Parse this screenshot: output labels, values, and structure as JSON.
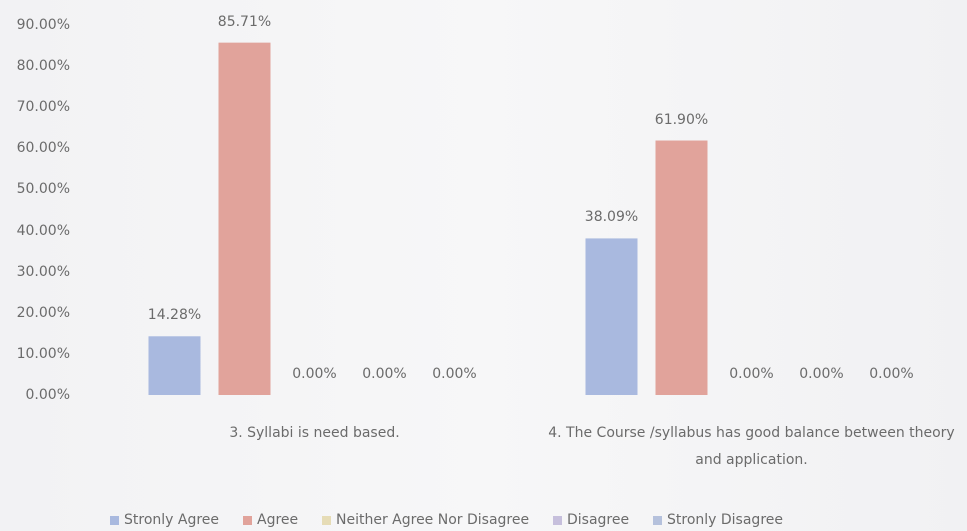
{
  "chart_data": {
    "type": "bar",
    "categories": [
      "3. Syllabi is need based.",
      "4. The Course /syllabus has good balance between theory and application."
    ],
    "series": [
      {
        "name": "Stronly Agree",
        "color": "#a9b9df",
        "values": [
          14.28,
          38.09
        ],
        "value_labels": [
          "14.28%",
          "38.09%"
        ]
      },
      {
        "name": "Agree",
        "color": "#e1a39b",
        "values": [
          85.71,
          61.9
        ],
        "value_labels": [
          "85.71%",
          "61.90%"
        ]
      },
      {
        "name": "Neither Agree Nor Disagree",
        "color": "#e6dcb6",
        "values": [
          0,
          0
        ],
        "value_labels": [
          "0.00%",
          "0.00%"
        ]
      },
      {
        "name": "Disagree",
        "color": "#c6bfdc",
        "values": [
          0,
          0
        ],
        "value_labels": [
          "0.00%",
          "0.00%"
        ]
      },
      {
        "name": "Stronly Disagree",
        "color": "#b5c1dc",
        "values": [
          0,
          0
        ],
        "value_labels": [
          "0.00%",
          "0.00%"
        ]
      }
    ],
    "ylim": [
      0,
      90
    ],
    "yticks": [
      {
        "value": 0,
        "label": "0.00%"
      },
      {
        "value": 10,
        "label": "10.00%"
      },
      {
        "value": 20,
        "label": "20.00%"
      },
      {
        "value": 30,
        "label": "30.00%"
      },
      {
        "value": 40,
        "label": "40.00%"
      },
      {
        "value": 50,
        "label": "50.00%"
      },
      {
        "value": 60,
        "label": "60.00%"
      },
      {
        "value": 70,
        "label": "70.00%"
      },
      {
        "value": 80,
        "label": "80.00%"
      },
      {
        "value": 90,
        "label": "90.00%"
      }
    ],
    "grid": false,
    "legend": "bottom"
  }
}
